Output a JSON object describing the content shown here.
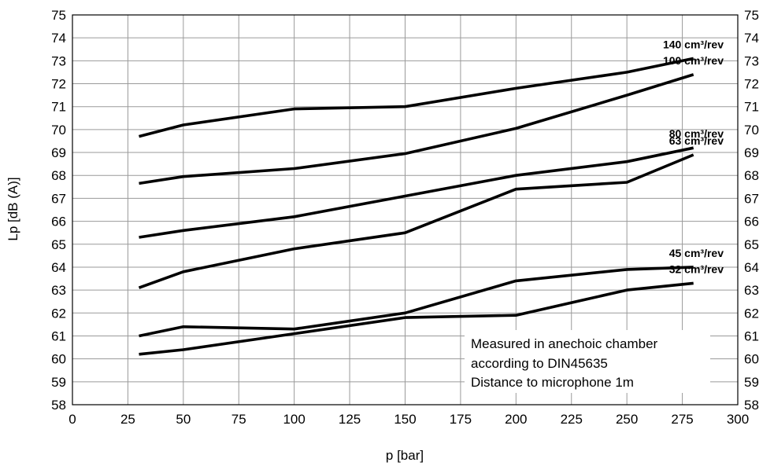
{
  "chart_data": {
    "type": "line",
    "xlabel": "p [bar]",
    "ylabel": "Lp [dB (A)]",
    "xlim": [
      0,
      300
    ],
    "ylim": [
      58,
      75
    ],
    "x_ticks": [
      "0",
      "25",
      "50",
      "75",
      "100",
      "125",
      "150",
      "175",
      "200",
      "225",
      "250",
      "275",
      "300"
    ],
    "y_ticks": [
      "58",
      "59",
      "60",
      "61",
      "62",
      "63",
      "64",
      "65",
      "66",
      "67",
      "68",
      "69",
      "70",
      "71",
      "72",
      "73",
      "74",
      "75"
    ],
    "grid": true,
    "series": [
      {
        "name": "140 cm³/rev",
        "x": [
          30,
          50,
          100,
          150,
          200,
          250,
          280
        ],
        "y": [
          69.7,
          70.2,
          70.9,
          71.0,
          71.8,
          72.5,
          73.1
        ]
      },
      {
        "name": "100 cm³/rev",
        "x": [
          30,
          50,
          100,
          150,
          200,
          250,
          280
        ],
        "y": [
          67.65,
          67.95,
          68.3,
          68.95,
          70.05,
          71.5,
          72.4
        ]
      },
      {
        "name": "80 cm³/rev",
        "x": [
          30,
          50,
          100,
          150,
          200,
          250,
          280
        ],
        "y": [
          65.3,
          65.6,
          66.2,
          67.1,
          68.0,
          68.6,
          69.2
        ]
      },
      {
        "name": "63 cm³/rev",
        "x": [
          30,
          50,
          100,
          150,
          200,
          250,
          280
        ],
        "y": [
          63.1,
          63.8,
          64.8,
          65.5,
          67.4,
          67.7,
          68.9
        ]
      },
      {
        "name": "45 cm³/rev",
        "x": [
          30,
          50,
          100,
          150,
          200,
          250,
          280
        ],
        "y": [
          61.0,
          61.4,
          61.3,
          62.0,
          63.4,
          63.9,
          64.0
        ]
      },
      {
        "name": "32 cm³/rev",
        "x": [
          30,
          50,
          100,
          150,
          200,
          250,
          280
        ],
        "y": [
          60.2,
          60.4,
          61.1,
          61.8,
          61.9,
          63.0,
          63.3
        ]
      }
    ],
    "annotation": [
      "Measured in anechoic chamber",
      "according to DIN45635",
      "Distance to microphone 1m"
    ]
  },
  "colors": {
    "line": "#000000",
    "grid": "#9a9a9a",
    "background": "#ffffff"
  }
}
